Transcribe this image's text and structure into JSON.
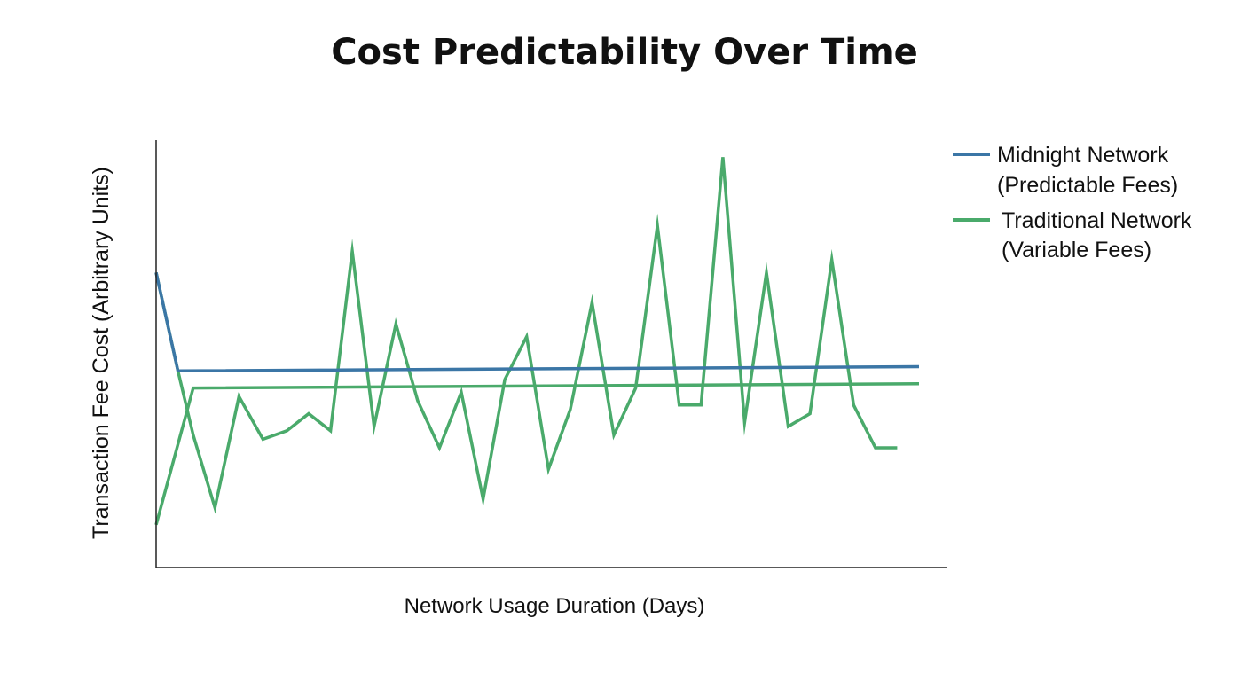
{
  "chart_data": {
    "type": "line",
    "title": "Cost Predictability Over Time",
    "xlabel": "Network Usage Duration (Days)",
    "ylabel": "Transaction Fee Cost (Arbitrary Units)",
    "grid": false,
    "ticks": false,
    "legend_position": "top-right",
    "xlim": [
      0,
      35
    ],
    "ylim": [
      0,
      100
    ],
    "series": [
      {
        "name_lines": [
          "Midnight Network",
          "(Predictable Fees)"
        ],
        "color": "#3b76a6",
        "x": [
          0,
          1,
          35
        ],
        "y": [
          69,
          46,
          47
        ]
      },
      {
        "name_lines": [
          "Traditional Network",
          "(Variable Fees)"
        ],
        "color": "#4aaa6b",
        "x": [
          0,
          1.7,
          35
        ],
        "y": [
          10,
          42,
          43
        ]
      },
      {
        "name": "",
        "color": "#4aaa6b",
        "x": [
          0,
          1,
          1.7,
          2.7,
          3.8,
          4.9,
          6.0,
          7.0,
          8.0,
          9.0,
          10.0,
          11.0,
          12.0,
          13.0,
          14.0,
          15.0,
          16.0,
          17.0,
          18.0,
          19.0,
          20.0,
          21.0,
          22.0,
          23.0,
          24.0,
          25.0,
          26.0,
          27.0,
          28.0,
          29.0,
          30.0,
          31.0,
          32.0,
          33.0,
          34.0
        ],
        "y": [
          69,
          46,
          31,
          14,
          40,
          30,
          32,
          36,
          32,
          74,
          33,
          57,
          39,
          28,
          41,
          16,
          44,
          54,
          23,
          37,
          62,
          31,
          42,
          80,
          38,
          38,
          96,
          34,
          69,
          33,
          36,
          72,
          38,
          28,
          28
        ]
      }
    ]
  }
}
